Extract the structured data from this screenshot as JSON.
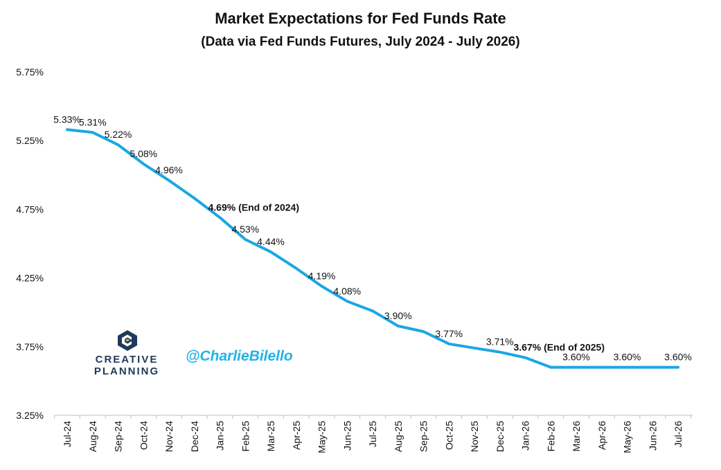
{
  "title": "Market Expectations for Fed Funds Rate",
  "subtitle": "(Data via Fed Funds Futures, July 2024 - July 2026)",
  "watermark_handle": "@CharlieBilello",
  "logo": {
    "line1": "CREATIVE",
    "line2": "PLANNING",
    "icon": "creative-planning-logo-icon"
  },
  "colors": {
    "line": "#1aa7e3",
    "axis": "#bfbfbf",
    "handle": "#21b3e6",
    "logo": "#1f3a5a"
  },
  "chart_data": {
    "type": "line",
    "title": "Market Expectations for Fed Funds Rate",
    "subtitle": "(Data via Fed Funds Futures, July 2024 - July 2026)",
    "xlabel": "",
    "ylabel": "",
    "ylim": [
      3.25,
      5.75
    ],
    "yticks": [
      "5.75%",
      "5.25%",
      "4.75%",
      "4.25%",
      "3.75%",
      "3.25%"
    ],
    "ytick_values": [
      5.75,
      5.25,
      4.75,
      4.25,
      3.75,
      3.25
    ],
    "grid": false,
    "categories": [
      "Jul-24",
      "Aug-24",
      "Sep-24",
      "Oct-24",
      "Nov-24",
      "Dec-24",
      "Jan-25",
      "Feb-25",
      "Mar-25",
      "Apr-25",
      "May-25",
      "Jun-25",
      "Jul-25",
      "Aug-25",
      "Sep-25",
      "Oct-25",
      "Nov-25",
      "Dec-25",
      "Jan-26",
      "Feb-26",
      "Mar-26",
      "Apr-26",
      "May-26",
      "Jun-26",
      "Jul-26"
    ],
    "series": [
      {
        "values": [
          5.33,
          5.31,
          5.22,
          5.08,
          4.96,
          4.83,
          4.69,
          4.53,
          4.44,
          4.32,
          4.19,
          4.08,
          4.01,
          3.9,
          3.86,
          3.77,
          3.74,
          3.71,
          3.67,
          3.6,
          3.6,
          3.6,
          3.6,
          3.6,
          3.6
        ]
      }
    ],
    "data_labels": [
      {
        "index": 0,
        "text": "5.33%"
      },
      {
        "index": 1,
        "text": "5.31%"
      },
      {
        "index": 2,
        "text": "5.22%"
      },
      {
        "index": 3,
        "text": "5.08%"
      },
      {
        "index": 4,
        "text": "4.96%"
      },
      {
        "index": 6,
        "text": "4.69% (End of 2024)",
        "bold": true
      },
      {
        "index": 7,
        "text": "4.53%"
      },
      {
        "index": 8,
        "text": "4.44%"
      },
      {
        "index": 10,
        "text": "4.19%"
      },
      {
        "index": 11,
        "text": "4.08%"
      },
      {
        "index": 13,
        "text": "3.90%"
      },
      {
        "index": 15,
        "text": "3.77%"
      },
      {
        "index": 17,
        "text": "3.71%"
      },
      {
        "index": 18,
        "text": "3.67% (End of 2025)",
        "bold": true
      },
      {
        "index": 20,
        "text": "3.60%"
      },
      {
        "index": 22,
        "text": "3.60%"
      },
      {
        "index": 24,
        "text": "3.60%"
      }
    ]
  }
}
